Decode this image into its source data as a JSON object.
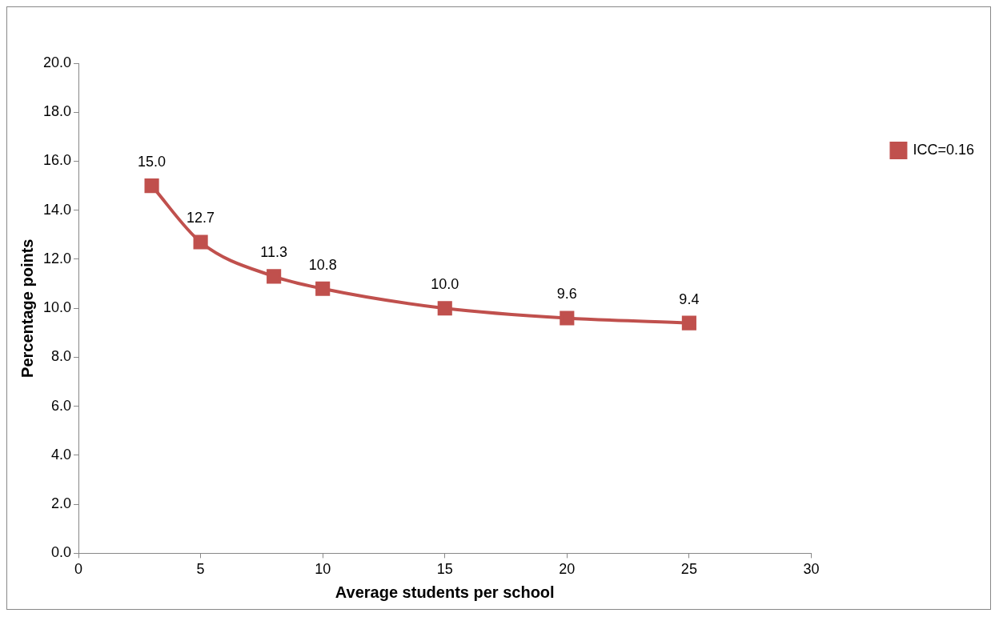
{
  "chart_data": {
    "type": "line",
    "x": [
      3,
      5,
      8,
      10,
      15,
      20,
      25
    ],
    "series": [
      {
        "name": "ICC=0.16",
        "color": "#c0504d",
        "values": [
          15.0,
          12.7,
          11.3,
          10.8,
          10.0,
          9.6,
          9.4
        ],
        "value_labels": [
          "15.0",
          "12.7",
          "11.3",
          "10.8",
          "10.0",
          "9.6",
          "9.4"
        ]
      }
    ],
    "xlabel": "Average students per school",
    "ylabel": "Percentage points",
    "xlim": [
      0,
      30
    ],
    "xticks": [
      0,
      5,
      10,
      15,
      20,
      25,
      30
    ],
    "ylim": [
      0,
      20
    ],
    "yticks": [
      {
        "value": 0,
        "label": "0.0"
      },
      {
        "value": 2,
        "label": "2.0"
      },
      {
        "value": 4,
        "label": "4.0"
      },
      {
        "value": 6,
        "label": "6.0"
      },
      {
        "value": 8,
        "label": "8.0"
      },
      {
        "value": 10,
        "label": "10.0"
      },
      {
        "value": 12,
        "label": "12.0"
      },
      {
        "value": 14,
        "label": "14.0"
      },
      {
        "value": 16,
        "label": "16.0"
      },
      {
        "value": 18,
        "label": "18.0"
      },
      {
        "value": 20,
        "label": "20.0"
      }
    ],
    "grid": false,
    "legend": "right",
    "marker": "square",
    "line_style": "solid"
  }
}
